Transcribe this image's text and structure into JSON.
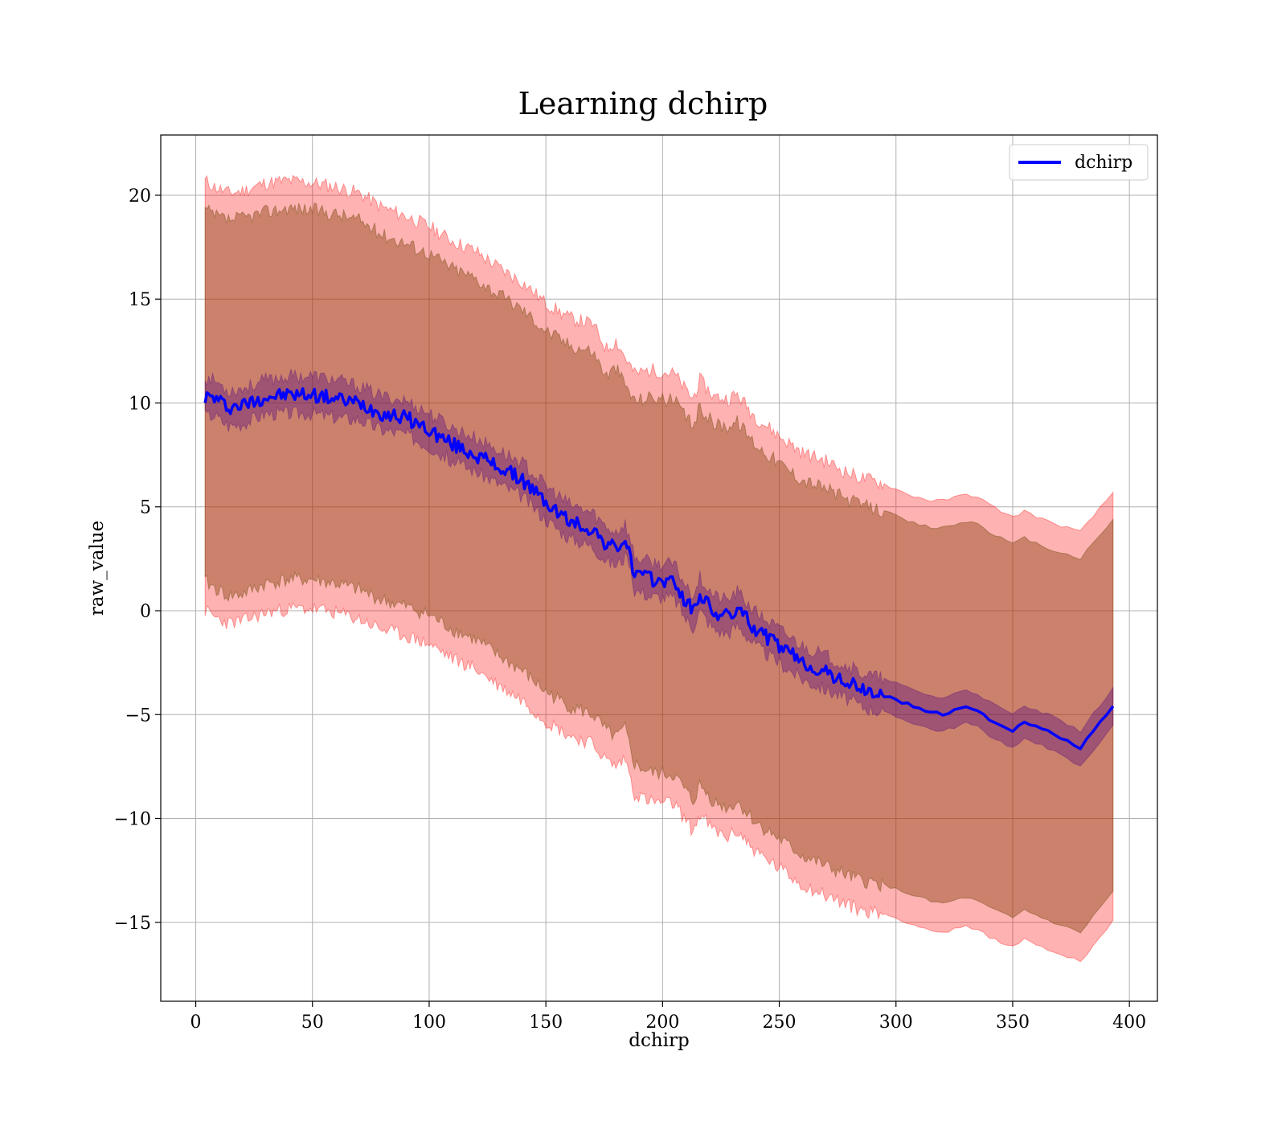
{
  "chart_data": {
    "type": "line",
    "title": "Learning dchirp",
    "xlabel": "dchirp",
    "ylabel": "raw_value",
    "xlim": [
      -15,
      412
    ],
    "ylim": [
      -18.8,
      22.9
    ],
    "x_ticks": [
      0,
      50,
      100,
      150,
      200,
      250,
      300,
      350,
      400
    ],
    "y_ticks": [
      -15,
      -10,
      -5,
      0,
      5,
      10,
      15,
      20
    ],
    "x_tick_labels": [
      "0",
      "50",
      "100",
      "150",
      "200",
      "250",
      "300",
      "350",
      "400"
    ],
    "y_tick_labels": [
      "−15",
      "−10",
      "−5",
      "0",
      "5",
      "10",
      "15",
      "20"
    ],
    "grid": true,
    "legend": {
      "position": "upper-right",
      "entries": [
        "dchirp"
      ]
    },
    "colors": {
      "line": "#0000ff",
      "outer_band": "#ff0000",
      "middle_band": "#8b4513",
      "inner_band": "#4b0082"
    },
    "series": [
      {
        "name": "dchirp",
        "x": [
          4,
          8,
          14,
          20,
          30,
          40,
          50,
          60,
          70,
          80,
          90,
          100,
          110,
          120,
          130,
          140,
          150,
          160,
          170,
          176,
          180,
          184,
          188,
          195,
          205,
          210,
          213,
          216,
          222,
          228,
          232,
          240,
          250,
          260,
          270,
          280,
          285,
          295,
          305,
          315,
          320,
          330,
          335,
          340,
          350,
          355,
          365,
          379,
          393
        ],
        "y": [
          10.3,
          10.25,
          9.8,
          9.9,
          10.3,
          10.4,
          10.4,
          10.2,
          10.0,
          9.5,
          9.3,
          8.7,
          8.0,
          7.5,
          6.9,
          6.3,
          5.2,
          4.3,
          3.9,
          3.2,
          3.0,
          3.4,
          1.8,
          1.5,
          1.4,
          0.4,
          0.0,
          0.8,
          -0.1,
          -0.3,
          0.1,
          -0.9,
          -1.7,
          -2.5,
          -3.0,
          -3.5,
          -3.8,
          -4.1,
          -4.5,
          -4.9,
          -5.0,
          -4.6,
          -4.8,
          -5.2,
          -5.8,
          -5.4,
          -5.8,
          -6.6,
          -4.6
        ]
      }
    ],
    "bands": {
      "outer_upper": [
        20.7,
        20.4,
        20.1,
        20.2,
        20.6,
        20.7,
        20.6,
        20.4,
        20.1,
        19.4,
        19.0,
        18.5,
        17.8,
        17.3,
        16.5,
        15.8,
        14.8,
        14.1,
        13.8,
        12.6,
        13.0,
        12.2,
        11.4,
        11.6,
        11.4,
        10.6,
        10.2,
        11.1,
        10.3,
        10.2,
        10.4,
        9.3,
        8.4,
        7.6,
        7.2,
        6.6,
        6.4,
        6.1,
        5.6,
        5.3,
        5.3,
        5.6,
        5.5,
        5.1,
        4.5,
        4.8,
        4.3,
        3.8,
        5.7
      ],
      "mid_upper": [
        19.3,
        19.0,
        18.8,
        18.9,
        19.2,
        19.4,
        19.3,
        19.1,
        18.8,
        18.1,
        17.7,
        17.2,
        16.5,
        16.0,
        15.2,
        14.5,
        13.5,
        12.8,
        12.5,
        11.3,
        11.7,
        10.9,
        10.1,
        10.3,
        10.1,
        9.3,
        8.9,
        9.8,
        9.0,
        8.9,
        9.1,
        8.0,
        7.1,
        6.3,
        5.9,
        5.3,
        5.1,
        4.8,
        4.3,
        4.0,
        4.0,
        4.3,
        4.2,
        3.8,
        3.2,
        3.5,
        3.0,
        2.5,
        4.4
      ],
      "inner_upper": [
        11.2,
        11.1,
        10.6,
        10.7,
        11.1,
        11.3,
        11.3,
        11.1,
        10.8,
        10.3,
        10.1,
        9.5,
        8.8,
        8.3,
        7.7,
        7.1,
        6.0,
        5.1,
        4.7,
        4.0,
        3.8,
        4.2,
        2.6,
        2.3,
        2.2,
        1.2,
        0.8,
        1.6,
        0.7,
        0.5,
        0.9,
        -0.1,
        -0.9,
        -1.7,
        -2.2,
        -2.7,
        -3.0,
        -3.3,
        -3.7,
        -4.1,
        -4.2,
        -3.8,
        -4.0,
        -4.4,
        -5.0,
        -4.6,
        -5.0,
        -5.8,
        -3.7
      ],
      "inner_lower": [
        9.4,
        9.4,
        8.9,
        9.0,
        9.5,
        9.5,
        9.5,
        9.3,
        9.2,
        8.7,
        8.5,
        7.9,
        7.2,
        6.7,
        6.1,
        5.5,
        4.4,
        3.5,
        3.1,
        2.4,
        2.2,
        2.6,
        1.0,
        0.7,
        0.6,
        -0.4,
        -0.8,
        0.0,
        -0.9,
        -1.1,
        -0.7,
        -1.7,
        -2.5,
        -3.3,
        -3.8,
        -4.3,
        -4.6,
        -4.9,
        -5.3,
        -5.7,
        -5.8,
        -5.4,
        -5.6,
        -6.0,
        -6.6,
        -6.2,
        -6.6,
        -7.5,
        -5.5
      ],
      "mid_lower": [
        1.4,
        1.1,
        0.7,
        0.8,
        1.3,
        1.5,
        1.5,
        1.3,
        1.0,
        0.5,
        0.2,
        -0.2,
        -0.9,
        -1.4,
        -2.2,
        -2.9,
        -3.9,
        -4.6,
        -5.0,
        -5.8,
        -6.1,
        -5.7,
        -7.4,
        -7.8,
        -7.9,
        -8.7,
        -9.2,
        -8.4,
        -9.2,
        -9.5,
        -9.2,
        -10.2,
        -11.0,
        -11.8,
        -12.3,
        -12.8,
        -13.0,
        -13.2,
        -13.6,
        -14.0,
        -14.1,
        -13.8,
        -14.0,
        -14.3,
        -14.8,
        -14.4,
        -14.9,
        -15.5,
        -13.5
      ],
      "outer_lower": [
        0.0,
        -0.3,
        -0.6,
        -0.5,
        -0.1,
        0.1,
        0.1,
        -0.1,
        -0.4,
        -0.9,
        -1.2,
        -1.6,
        -2.3,
        -2.8,
        -3.6,
        -4.3,
        -5.3,
        -6.0,
        -6.4,
        -7.2,
        -7.5,
        -7.1,
        -8.8,
        -9.2,
        -9.3,
        -10.1,
        -10.6,
        -9.8,
        -10.6,
        -10.9,
        -10.6,
        -11.6,
        -12.4,
        -13.2,
        -13.7,
        -14.2,
        -14.4,
        -14.6,
        -15.0,
        -15.4,
        -15.5,
        -15.2,
        -15.4,
        -15.7,
        -16.2,
        -15.8,
        -16.3,
        -16.9,
        -14.9
      ]
    }
  }
}
